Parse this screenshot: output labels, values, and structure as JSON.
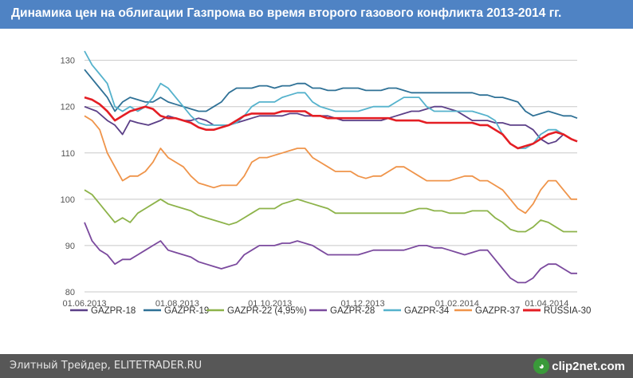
{
  "title": "Динамика цен на облигации Газпрома во время второго газового конфликта 2013-2014 гг.",
  "footer": {
    "source": "Элитный Трейдер, ELITETRADER.RU",
    "logo": "clip2net.com"
  },
  "chart_data": {
    "type": "line",
    "title": "Динамика цен на облигации Газпрома во время второго газового конфликта 2013-2014 гг.",
    "xlabel": "",
    "ylabel": "",
    "ylim": [
      80,
      132
    ],
    "yticks": [
      80,
      90,
      100,
      110,
      120,
      130
    ],
    "xlim": [
      0,
      308
    ],
    "xticks": [
      {
        "x": 0,
        "label": "01.06.2013"
      },
      {
        "x": 61,
        "label": "01.08.2013"
      },
      {
        "x": 122,
        "label": "01.10.2013"
      },
      {
        "x": 183,
        "label": "01.12.2013"
      },
      {
        "x": 245,
        "label": "01.02.2014"
      },
      {
        "x": 304,
        "label": "01.04.2014"
      }
    ],
    "grid": "horizontal",
    "legend_position": "bottom",
    "x_range": [
      0,
      324
    ],
    "series": [
      {
        "name": "GAZPR-18",
        "color": "#5b3f87",
        "x": [
          0,
          8,
          15,
          20,
          25,
          30,
          35,
          42,
          50,
          55,
          60,
          65,
          70,
          75,
          80,
          85,
          90,
          95,
          100,
          105,
          110,
          115,
          120,
          125,
          130,
          135,
          140,
          145,
          150,
          155,
          160,
          165,
          170,
          175,
          180,
          185,
          190,
          195,
          200,
          205,
          210,
          215,
          220,
          225,
          230,
          235,
          240,
          245,
          250,
          255,
          260,
          265,
          270,
          275,
          280,
          285,
          290,
          295,
          300,
          305,
          310,
          315,
          320,
          324
        ],
        "y": [
          120,
          119,
          117,
          116,
          114,
          117,
          116.5,
          116,
          117,
          118,
          117.5,
          117,
          117,
          117.5,
          117,
          116,
          116,
          116,
          116.5,
          117,
          117.5,
          118,
          118,
          118,
          118,
          118.5,
          118.5,
          118,
          118,
          118,
          118,
          117.5,
          117,
          117,
          117,
          117,
          117,
          117,
          117.5,
          118,
          118.5,
          119,
          119,
          119.5,
          120,
          120,
          119.5,
          119,
          118,
          117,
          117,
          117,
          116.5,
          116.5,
          116,
          116,
          116,
          115,
          113,
          112,
          112.5,
          114,
          113,
          112.5
        ]
      },
      {
        "name": "GAZPR-19",
        "color": "#2f7196",
        "x": [
          0,
          5,
          10,
          15,
          20,
          25,
          30,
          35,
          40,
          45,
          50,
          55,
          60,
          65,
          70,
          75,
          80,
          85,
          90,
          95,
          100,
          105,
          110,
          115,
          120,
          125,
          130,
          135,
          140,
          145,
          150,
          155,
          160,
          165,
          170,
          175,
          180,
          185,
          190,
          195,
          200,
          205,
          210,
          215,
          220,
          225,
          230,
          235,
          240,
          245,
          250,
          255,
          260,
          265,
          270,
          275,
          280,
          285,
          290,
          295,
          300,
          305,
          310,
          315,
          320,
          324
        ],
        "y": [
          128,
          126,
          124,
          122,
          119,
          121,
          122,
          121.5,
          121,
          121,
          122,
          121,
          120.5,
          120,
          119.5,
          119,
          119,
          120,
          121,
          123,
          124,
          124,
          124,
          124.5,
          124.5,
          124,
          124.5,
          124.5,
          125,
          125,
          124,
          124,
          123.5,
          123.5,
          124,
          124,
          124,
          123.5,
          123.5,
          123.5,
          124,
          124,
          123.5,
          123,
          123,
          123,
          123,
          123,
          123,
          123,
          123,
          123,
          122.5,
          122.5,
          122,
          122,
          121.5,
          121,
          119,
          118,
          118.5,
          119,
          118.5,
          118,
          118,
          117.5
        ]
      },
      {
        "name": "GAZPR-22 (4,95%)",
        "color": "#8db34a",
        "x": [
          0,
          5,
          10,
          15,
          20,
          25,
          30,
          35,
          40,
          45,
          50,
          55,
          60,
          65,
          70,
          75,
          80,
          85,
          90,
          95,
          100,
          105,
          110,
          115,
          120,
          125,
          130,
          135,
          140,
          145,
          150,
          155,
          160,
          165,
          170,
          175,
          180,
          185,
          190,
          195,
          200,
          205,
          210,
          215,
          220,
          225,
          230,
          235,
          240,
          245,
          250,
          255,
          260,
          265,
          270,
          275,
          280,
          285,
          290,
          295,
          300,
          305,
          310,
          315,
          320,
          324
        ],
        "y": [
          102,
          101,
          99,
          97,
          95,
          96,
          95,
          97,
          98,
          99,
          100,
          99,
          98.5,
          98,
          97.5,
          96.5,
          96,
          95.5,
          95,
          94.5,
          95,
          96,
          97,
          98,
          98,
          98,
          99,
          99.5,
          100,
          99.5,
          99,
          98.5,
          98,
          97,
          97,
          97,
          97,
          97,
          97,
          97,
          97,
          97,
          97,
          97.5,
          98,
          98,
          97.5,
          97.5,
          97,
          97,
          97,
          97.5,
          97.5,
          97.5,
          96,
          95,
          93.5,
          93,
          93,
          94,
          95.5,
          95,
          94,
          93,
          93,
          93
        ]
      },
      {
        "name": "GAZPR-28",
        "color": "#7b4a9e",
        "x": [
          0,
          5,
          10,
          15,
          20,
          25,
          30,
          35,
          40,
          45,
          50,
          55,
          60,
          65,
          70,
          75,
          80,
          85,
          90,
          95,
          100,
          105,
          110,
          115,
          120,
          125,
          130,
          135,
          140,
          145,
          150,
          155,
          160,
          165,
          170,
          175,
          180,
          185,
          190,
          195,
          200,
          205,
          210,
          215,
          220,
          225,
          230,
          235,
          240,
          245,
          250,
          255,
          260,
          265,
          270,
          275,
          280,
          285,
          290,
          295,
          300,
          305,
          310,
          315,
          320,
          324
        ],
        "y": [
          95,
          91,
          89,
          88,
          86,
          87,
          87,
          88,
          89,
          90,
          91,
          89,
          88.5,
          88,
          87.5,
          86.5,
          86,
          85.5,
          85,
          85.5,
          86,
          88,
          89,
          90,
          90,
          90,
          90.5,
          90.5,
          91,
          90.5,
          90,
          89,
          88,
          88,
          88,
          88,
          88,
          88.5,
          89,
          89,
          89,
          89,
          89,
          89.5,
          90,
          90,
          89.5,
          89.5,
          89,
          88.5,
          88,
          88.5,
          89,
          89,
          87,
          85,
          83,
          82,
          82,
          83,
          85,
          86,
          86,
          85,
          84,
          84
        ]
      },
      {
        "name": "GAZPR-34",
        "color": "#55b2cc",
        "x": [
          0,
          5,
          10,
          15,
          20,
          25,
          30,
          35,
          40,
          45,
          50,
          55,
          60,
          65,
          70,
          75,
          80,
          85,
          90,
          95,
          100,
          105,
          110,
          115,
          120,
          125,
          130,
          135,
          140,
          145,
          150,
          155,
          160,
          165,
          170,
          175,
          180,
          185,
          190,
          195,
          200,
          205,
          210,
          215,
          220,
          225,
          230,
          235,
          240,
          245,
          250,
          255,
          260,
          265,
          270,
          275,
          280,
          285,
          290,
          295,
          300,
          305,
          310,
          315,
          320,
          324
        ],
        "y": [
          132,
          129,
          127,
          125,
          120,
          119,
          120,
          119,
          120,
          122,
          125,
          124,
          122,
          120,
          118,
          116.5,
          116,
          116,
          116,
          116,
          116.5,
          118,
          120,
          121,
          121,
          121,
          122,
          122.5,
          123,
          123,
          121,
          120,
          119.5,
          119,
          119,
          119,
          119,
          119.5,
          120,
          120,
          120,
          121,
          122,
          122,
          122,
          120,
          119,
          119,
          119,
          119,
          119,
          119,
          118.5,
          118,
          117,
          114,
          112,
          111,
          111,
          112,
          114,
          115,
          115,
          114,
          113,
          112.5
        ]
      },
      {
        "name": "GAZPR-37",
        "color": "#ef944a",
        "x": [
          0,
          5,
          10,
          15,
          20,
          25,
          30,
          35,
          40,
          45,
          50,
          55,
          60,
          65,
          70,
          75,
          80,
          85,
          90,
          95,
          100,
          105,
          110,
          115,
          120,
          125,
          130,
          135,
          140,
          145,
          150,
          155,
          160,
          165,
          170,
          175,
          180,
          185,
          190,
          195,
          200,
          205,
          210,
          215,
          220,
          225,
          230,
          235,
          240,
          245,
          250,
          255,
          260,
          265,
          270,
          275,
          280,
          285,
          290,
          295,
          300,
          305,
          310,
          315,
          320,
          324
        ],
        "y": [
          118,
          117,
          115,
          110,
          107,
          104,
          105,
          105,
          106,
          108,
          111,
          109,
          108,
          107,
          105,
          103.5,
          103,
          102.5,
          103,
          103,
          103,
          105,
          108,
          109,
          109,
          109.5,
          110,
          110.5,
          111,
          111,
          109,
          108,
          107,
          106,
          106,
          106,
          105,
          104.5,
          105,
          105,
          106,
          107,
          107,
          106,
          105,
          104,
          104,
          104,
          104,
          104.5,
          105,
          105,
          104,
          104,
          103,
          102,
          100,
          98,
          97,
          99,
          102,
          104,
          104,
          102,
          100,
          100
        ]
      },
      {
        "name": "RUSSIA-30",
        "color": "#e41e24",
        "x": [
          0,
          5,
          10,
          15,
          20,
          25,
          30,
          35,
          40,
          45,
          50,
          55,
          60,
          65,
          70,
          75,
          80,
          85,
          90,
          95,
          100,
          105,
          110,
          115,
          120,
          125,
          130,
          135,
          140,
          145,
          150,
          155,
          160,
          165,
          170,
          175,
          180,
          185,
          190,
          195,
          200,
          205,
          210,
          215,
          220,
          225,
          230,
          235,
          240,
          245,
          250,
          255,
          260,
          265,
          270,
          275,
          280,
          285,
          290,
          295,
          300,
          305,
          310,
          315,
          320,
          324
        ],
        "y": [
          122,
          121.5,
          120.5,
          119,
          117,
          118,
          119,
          119.5,
          120,
          119.5,
          118,
          117.5,
          117.5,
          117,
          116.5,
          115.5,
          115,
          115,
          115.5,
          116,
          117,
          118,
          118.5,
          118.5,
          118.5,
          118.5,
          119,
          119,
          119,
          119,
          118,
          118,
          117.5,
          117.5,
          117.5,
          117.5,
          117.5,
          117.5,
          117.5,
          117.5,
          117.5,
          117,
          117,
          117,
          117,
          116.5,
          116.5,
          116.5,
          116.5,
          116.5,
          116.5,
          116.5,
          116,
          116,
          115,
          114,
          112,
          111,
          111.5,
          112,
          113,
          114,
          114.5,
          114,
          113,
          112.5
        ]
      }
    ]
  }
}
